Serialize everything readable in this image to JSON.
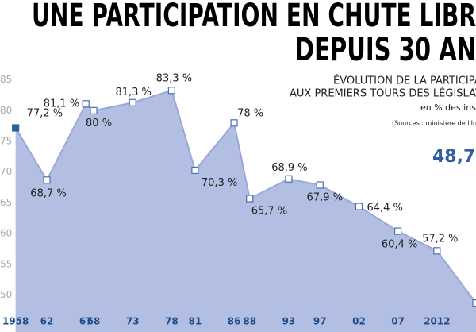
{
  "chart_data": {
    "type": "area",
    "title": [
      "UNE PARTICIPATION EN CHUTE LIBR",
      "DEPUIS  30 AN"
    ],
    "subtitle": [
      "ÉVOLUTION DE LA PARTICIPATI",
      "AUX PREMIERS TOURS DES LÉGISLATIV",
      "en % des insc",
      "(Sources : ministère de l'Intérieur"
    ],
    "x": [
      1958,
      1962,
      1967,
      1968,
      1973,
      1978,
      1981,
      1986,
      1988,
      1993,
      1997,
      2002,
      2007,
      2012,
      2017
    ],
    "series": [
      {
        "color": "#2e5fa0",
        "values": [
          77.2,
          68.7,
          81.1,
          80,
          81.3,
          83.3,
          70.3,
          78,
          65.7,
          68.9,
          67.9,
          64.4,
          60.4,
          57.2,
          48.7
        ],
        "value_labels": [
          "77,2 %",
          "68,7 %",
          "81,1 %",
          "80 %",
          "81,3 %",
          "83,3 %",
          "70,3 %",
          "78 %",
          "65,7 %",
          "68,9 %",
          "67,9 %",
          "64,4 %",
          "60,4 %",
          "57,2 %",
          "48,7"
        ]
      }
    ],
    "xlim": [
      1956,
      2017
    ],
    "ylim": [
      44,
      98
    ],
    "xticks": [
      1958,
      {
        "value": 1962,
        "label": "62"
      },
      {
        "value": 1967,
        "label": "67"
      },
      {
        "value": 1968,
        "label": "68"
      },
      {
        "value": 1973,
        "label": "73"
      },
      {
        "value": 1978,
        "label": "78"
      },
      {
        "value": 1981,
        "label": "81"
      },
      {
        "value": 1986,
        "label": "86"
      },
      {
        "value": 1988,
        "label": "88"
      },
      {
        "value": 1993,
        "label": "93"
      },
      {
        "value": 1997,
        "label": "97"
      },
      {
        "value": 2002,
        "label": "02"
      },
      {
        "value": 2007,
        "label": "07"
      },
      2012
    ],
    "yticks": [
      50,
      55,
      60,
      65,
      70,
      75,
      80,
      85
    ],
    "area_color": "#b3bfe2",
    "line_color": "#98a8d8"
  }
}
